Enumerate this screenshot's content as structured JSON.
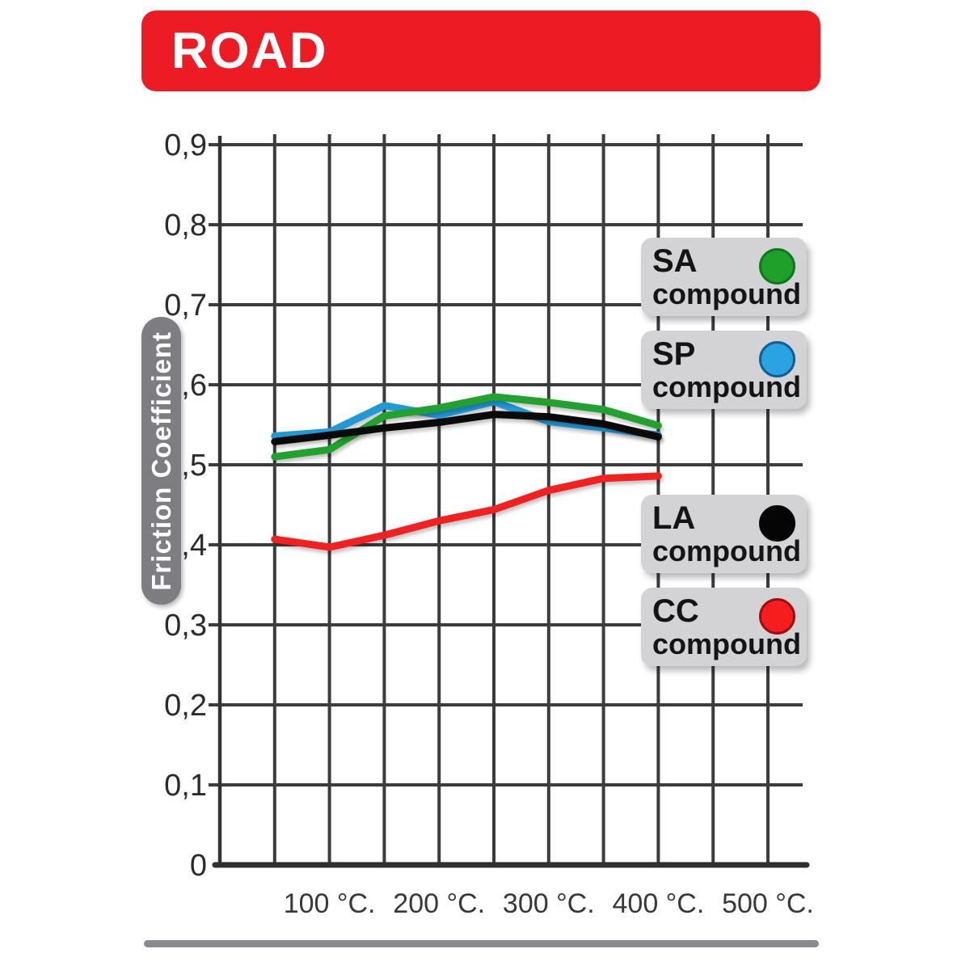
{
  "banner": {
    "label": "ROAD",
    "background": "#ed1c24",
    "text_color": "#ffffff"
  },
  "chart_data": {
    "type": "line",
    "ylabel": "Friction Coefficient",
    "ylim": [
      0,
      0.9
    ],
    "xlim": [
      0,
      535
    ],
    "grid": {
      "on": true,
      "x_start": 50,
      "x_end": 500,
      "x_step": 50,
      "y_step": 0.1
    },
    "y_ticks": [
      {
        "value": 0.9,
        "label": "0,9"
      },
      {
        "value": 0.8,
        "label": "0,8"
      },
      {
        "value": 0.7,
        "label": "0,7"
      },
      {
        "value": 0.6,
        "label": "0,6"
      },
      {
        "value": 0.5,
        "label": "0,5"
      },
      {
        "value": 0.4,
        "label": "0,4"
      },
      {
        "value": 0.3,
        "label": "0,3"
      },
      {
        "value": 0.2,
        "label": "0,2"
      },
      {
        "value": 0.1,
        "label": "0,1"
      },
      {
        "value": 0,
        "label": "0"
      }
    ],
    "x_ticks": [
      {
        "value": 100,
        "label": "100 °C."
      },
      {
        "value": 200,
        "label": "200 °C."
      },
      {
        "value": 300,
        "label": "300 °C."
      },
      {
        "value": 400,
        "label": "400 °C."
      },
      {
        "value": 500,
        "label": "500 °C."
      }
    ],
    "x": [
      50,
      100,
      150,
      200,
      250,
      300,
      350,
      400
    ],
    "series": [
      {
        "code": "SA",
        "name": "SA compound",
        "color": "#21a12d",
        "values": [
          0.51,
          0.519,
          0.561,
          0.571,
          0.585,
          0.578,
          0.569,
          0.549
        ]
      },
      {
        "code": "SP",
        "name": "SP compound",
        "color": "#2099d6",
        "values": [
          0.536,
          0.541,
          0.574,
          0.562,
          0.579,
          0.554,
          0.546,
          0.537
        ]
      },
      {
        "code": "LA",
        "name": "LA compound",
        "color": "#0a0a0a",
        "values": [
          0.529,
          0.537,
          0.546,
          0.553,
          0.563,
          0.56,
          0.551,
          0.535
        ]
      },
      {
        "code": "CC",
        "name": "CC compound",
        "color": "#f32020",
        "values": [
          0.407,
          0.397,
          0.412,
          0.43,
          0.444,
          0.468,
          0.483,
          0.486
        ]
      }
    ],
    "legend_position": "right-overlay"
  },
  "legend": {
    "items": [
      {
        "code": "SA",
        "label": "compound",
        "dot_color": "#1ea12b",
        "dot_border": "#0c7a1c"
      },
      {
        "code": "SP",
        "label": "compound",
        "dot_color": "#2aa3e3",
        "dot_border": "#0f5f93"
      },
      {
        "code": "LA",
        "label": "compound",
        "dot_color": "#050505",
        "dot_border": "#050505"
      },
      {
        "code": "CC",
        "label": "compound",
        "dot_color": "#f51d1d",
        "dot_border": "#9b0f0f"
      }
    ]
  }
}
